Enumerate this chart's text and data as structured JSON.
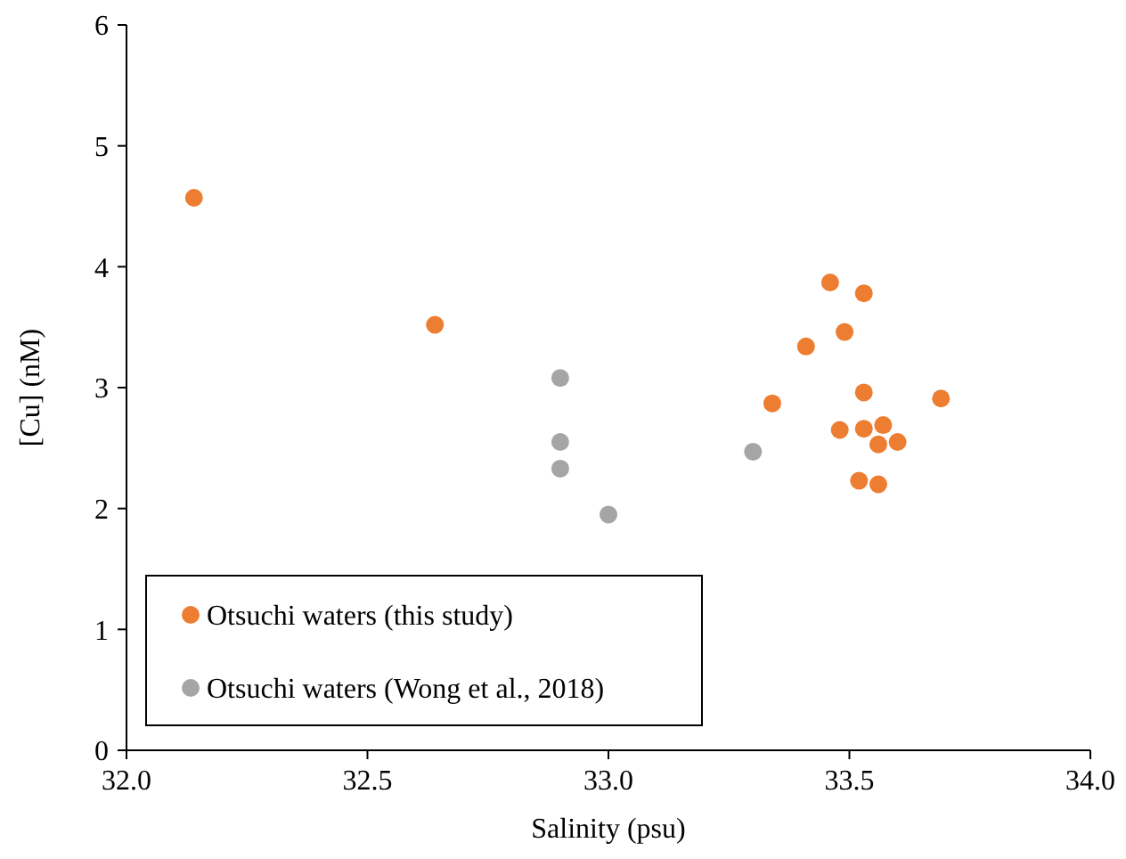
{
  "chart_data": {
    "type": "scatter",
    "xlabel": "Salinity (psu)",
    "ylabel": "[Cu] (nM)",
    "xlim": [
      32,
      34
    ],
    "xticks": [
      {
        "value": 32,
        "label": "32.0"
      },
      {
        "value": 32.5,
        "label": "32.5"
      },
      {
        "value": 33,
        "label": "33.0"
      },
      {
        "value": 33.5,
        "label": "33.5"
      },
      {
        "value": 34,
        "label": "34.0"
      }
    ],
    "ylim": [
      0,
      6
    ],
    "yticks": [
      0,
      1,
      2,
      3,
      4,
      5,
      6
    ],
    "grid": false,
    "legend": "bottom left",
    "marker": "circle",
    "series": [
      {
        "name": "Otsuchi waters (this study)",
        "color": "#ed7d31",
        "x": [
          32.14,
          32.64,
          33.46,
          33.53,
          33.49,
          33.41,
          33.53,
          33.69,
          33.34,
          33.48,
          33.53,
          33.57,
          33.56,
          33.6,
          33.52,
          33.56
        ],
        "values": [
          4.57,
          3.52,
          3.87,
          3.78,
          3.46,
          3.34,
          2.96,
          2.91,
          2.87,
          2.65,
          2.66,
          2.69,
          2.53,
          2.55,
          2.23,
          2.2
        ]
      },
      {
        "name": "Otsuchi waters (Wong et al., 2018)",
        "color": "#a5a5a5",
        "x": [
          32.9,
          32.9,
          32.9,
          33,
          33.3
        ],
        "values": [
          3.08,
          2.55,
          2.33,
          1.95,
          2.47
        ]
      }
    ]
  }
}
